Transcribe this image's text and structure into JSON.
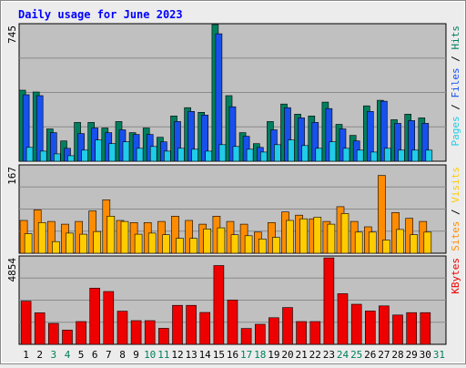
{
  "chart_data": {
    "type": "bar",
    "title": "Daily usage for June 2023",
    "categories": [
      "1",
      "2",
      "3",
      "4",
      "5",
      "6",
      "7",
      "8",
      "9",
      "10",
      "11",
      "12",
      "13",
      "14",
      "15",
      "16",
      "17",
      "18",
      "19",
      "20",
      "21",
      "22",
      "23",
      "24",
      "25",
      "26",
      "27",
      "28",
      "29",
      "30",
      "31"
    ],
    "weekend_days": [
      "3",
      "4",
      "10",
      "11",
      "17",
      "18",
      "24",
      "25",
      "31"
    ],
    "panels": [
      {
        "name": "pages-files-hits",
        "ymax": 745,
        "ymax_label": "745",
        "grid": true,
        "series": [
          {
            "name": "Hits",
            "color": "#007f5f",
            "values": [
              385,
              375,
              175,
              110,
              210,
              210,
              180,
              215,
              155,
              180,
              130,
              245,
              290,
              265,
              740,
              355,
              155,
              95,
              215,
              310,
              255,
              245,
              320,
              200,
              140,
              300,
              330,
              225,
              255,
              235,
              0
            ]
          },
          {
            "name": "Files",
            "color": "#1850ee",
            "values": [
              360,
              355,
              155,
              70,
              150,
              180,
              155,
              170,
              145,
              145,
              105,
              215,
              270,
              250,
              690,
              295,
              135,
              75,
              170,
              290,
              235,
              210,
              285,
              175,
              110,
              270,
              325,
              205,
              220,
              205,
              0
            ]
          },
          {
            "name": "Pages",
            "color": "#20cce8",
            "values": [
              75,
              55,
              40,
              30,
              60,
              115,
              95,
              105,
              70,
              80,
              55,
              70,
              65,
              55,
              90,
              80,
              65,
              50,
              90,
              115,
              85,
              70,
              105,
              70,
              60,
              50,
              70,
              60,
              60,
              60,
              0
            ]
          }
        ],
        "axis_label": [
          {
            "text": "Pages",
            "color": "#20cce8"
          },
          {
            "text": " / ",
            "color": "#000000"
          },
          {
            "text": "Files",
            "color": "#1850ee"
          },
          {
            "text": " / ",
            "color": "#000000"
          },
          {
            "text": "Hits",
            "color": "#007f5f"
          }
        ]
      },
      {
        "name": "visits-sites",
        "ymax": 167,
        "ymax_label": "167",
        "grid": true,
        "series": [
          {
            "name": "Sites",
            "color": "#ff8c00",
            "values": [
              62,
              82,
              60,
              55,
              60,
              80,
              101,
              62,
              58,
              58,
              60,
              70,
              62,
              55,
              70,
              60,
              55,
              40,
              58,
              78,
              72,
              65,
              60,
              88,
              60,
              50,
              147,
              77,
              66,
              60,
              0
            ]
          },
          {
            "name": "Visits",
            "color": "#ffcc00",
            "values": [
              37,
              58,
              22,
              38,
              36,
              41,
              70,
              60,
              36,
              38,
              35,
              28,
              28,
              46,
              48,
              35,
              33,
              27,
              30,
              62,
              65,
              68,
              55,
              75,
              40,
              40,
              25,
              45,
              35,
              40,
              0
            ]
          }
        ],
        "axis_label": [
          {
            "text": "Sites",
            "color": "#ff8c00"
          },
          {
            "text": " / ",
            "color": "#000000"
          },
          {
            "text": "Visits",
            "color": "#ffcc00"
          }
        ]
      },
      {
        "name": "kbytes",
        "ymax": 4854,
        "ymax_label": "4854",
        "grid": true,
        "series": [
          {
            "name": "KBytes",
            "color": "#ee0000",
            "values": [
              2370,
              1730,
              1150,
              780,
              1250,
              3090,
              2900,
              1820,
              1300,
              1300,
              880,
              2140,
              2140,
              1750,
              4330,
              2430,
              870,
              1100,
              1460,
              2020,
              1250,
              1250,
              4750,
              2780,
              2200,
              1830,
              2110,
              1610,
              1740,
              1740,
              0
            ]
          }
        ],
        "axis_label": [
          {
            "text": "KBytes",
            "color": "#ee0000"
          }
        ]
      }
    ]
  },
  "colors": {
    "background": "#ececec",
    "plot_bg": "#c0c0c0",
    "title": "#0000ff",
    "weekday_label": "#000000",
    "weekend_label": "#00805c"
  }
}
